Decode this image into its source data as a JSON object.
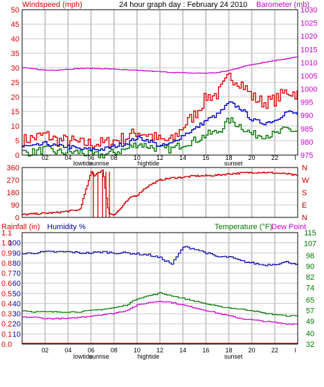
{
  "page_title": "24 hour graph day : February 24 2010",
  "colors": {
    "windspeed": "#dd0000",
    "gust": "#dd0000",
    "wind_avg": "#0000cc",
    "wind_low": "#007700",
    "barometer": "#cc00cc",
    "direction": "#cc0000",
    "humidity": "#0000aa",
    "temperature": "#007700",
    "dewpoint": "#cc00cc",
    "rainfall": "#dd0000",
    "grid": "#c8c8c8",
    "frame": "#000000"
  },
  "x_axis": {
    "hour_labels": [
      "02",
      "04",
      "06",
      "08",
      "10",
      "12",
      "14",
      "16",
      "18",
      "20",
      "22",
      "l"
    ],
    "events": [
      {
        "label": "lowtide",
        "hour": 5.3
      },
      {
        "label": "sunrise",
        "hour": 6.7
      },
      {
        "label": "hightide",
        "hour": 11.0
      },
      {
        "label": "sunset",
        "hour": 18.4
      }
    ]
  },
  "chart_data": [
    {
      "type": "line",
      "title": "24 hour graph day : February 24 2010",
      "left_label": "Windspeed (mph)",
      "right_label": "Barometer (mb)",
      "ylim_left": [
        0,
        50
      ],
      "left_ticks": [
        "0",
        "5",
        "10",
        "15",
        "20",
        "25",
        "30",
        "35",
        "40",
        "45",
        "50"
      ],
      "ylim_right": [
        975,
        1030
      ],
      "right_ticks": [
        "975",
        "980",
        "985",
        "990",
        "995",
        "1000",
        "1005",
        "1010",
        "1015",
        "1020",
        "1025",
        "1030"
      ],
      "x": [
        0,
        1,
        2,
        3,
        4,
        5,
        6,
        7,
        8,
        9,
        10,
        11,
        12,
        13,
        14,
        15,
        16,
        17,
        18,
        19,
        20,
        21,
        22,
        23,
        24
      ],
      "series": [
        {
          "key": "gust",
          "axis": "left",
          "values": [
            5,
            6,
            7,
            5,
            5,
            4,
            4,
            4,
            5,
            6,
            8,
            7,
            5,
            5,
            10,
            14,
            20,
            21,
            27,
            25,
            20,
            18,
            19,
            22,
            21
          ]
        },
        {
          "key": "wind_avg",
          "axis": "left",
          "values": [
            3,
            3,
            4,
            3,
            3,
            2,
            2,
            2,
            3,
            4,
            6,
            5,
            3,
            4,
            7,
            9,
            12,
            14,
            18,
            16,
            12,
            11,
            12,
            15,
            14
          ]
        },
        {
          "key": "wind_low",
          "axis": "left",
          "values": [
            1,
            1,
            2,
            1,
            1,
            1,
            0,
            0,
            1,
            2,
            4,
            3,
            2,
            2,
            4,
            5,
            7,
            8,
            12,
            10,
            7,
            7,
            7,
            9,
            8
          ]
        },
        {
          "key": "barometer",
          "axis": "right",
          "values": [
            1008,
            1007.6,
            1007.1,
            1007.2,
            1007.5,
            1007.8,
            1007.8,
            1007.7,
            1007.5,
            1007.2,
            1007,
            1006.8,
            1006.5,
            1006.3,
            1006.1,
            1006,
            1006,
            1006.2,
            1007,
            1008.3,
            1009.3,
            1010.1,
            1010.8,
            1011.5,
            1012.2
          ]
        }
      ]
    },
    {
      "type": "line",
      "left_label": "",
      "ylim": [
        0,
        360
      ],
      "y_ticks": [
        "0",
        "90",
        "180",
        "270",
        "360"
      ],
      "compass_labels": [
        "N",
        "W",
        "S",
        "E",
        "N"
      ],
      "x": [
        0,
        1,
        2,
        3,
        4,
        5,
        6,
        6.2,
        6.5,
        7,
        7.5,
        8,
        8.5,
        9,
        9.5,
        10,
        10.5,
        11,
        12,
        13,
        14,
        15,
        16,
        17,
        18,
        19,
        20,
        21,
        22,
        23,
        24
      ],
      "series": [
        {
          "key": "direction",
          "axis": "left",
          "values": [
            20,
            25,
            30,
            35,
            45,
            55,
            330,
            300,
            320,
            340,
            30,
            20,
            60,
            110,
            150,
            160,
            200,
            230,
            270,
            285,
            290,
            300,
            300,
            305,
            315,
            320,
            325,
            325,
            320,
            315,
            300
          ]
        }
      ]
    },
    {
      "type": "line",
      "left_label": "Rainfall (in)",
      "left_label_2": "Humidity %",
      "right_label": "Temperature (°F)",
      "right_label_2": "Dew Point",
      "rain_ticks": [
        "0.0",
        "0.1",
        "0.2",
        "0.3",
        "0.4",
        "0.5",
        "0.6",
        "0.7",
        "0.8",
        "0.9",
        "1.0",
        "1.1"
      ],
      "humidity_ticks": [
        "10",
        "20",
        "30",
        "40",
        "50",
        "60",
        "70",
        "80",
        "90",
        "100"
      ],
      "ylim_humidity": [
        0,
        110
      ],
      "ylim_right": [
        32,
        115
      ],
      "right_ticks": [
        "32",
        "40",
        "49",
        "57",
        "65",
        "74",
        "82",
        "90",
        "98",
        "107",
        "115"
      ],
      "x": [
        0,
        1,
        2,
        3,
        4,
        5,
        6,
        7,
        8,
        9,
        10,
        11,
        12,
        13,
        14,
        15,
        16,
        17,
        18,
        19,
        20,
        21,
        22,
        23,
        24
      ],
      "series": [
        {
          "key": "humidity",
          "axis": "left",
          "values": [
            89,
            90,
            91,
            91,
            91,
            90,
            90,
            91,
            90,
            90,
            89,
            88,
            85,
            79,
            96,
            94,
            90,
            86,
            86,
            82,
            80,
            78,
            79,
            81,
            79
          ]
        },
        {
          "key": "temperature",
          "axis": "right",
          "values": [
            57,
            56,
            56,
            56,
            56,
            56,
            57,
            58,
            59,
            61,
            66,
            68,
            70,
            68,
            66,
            64,
            62,
            60,
            59,
            58,
            57,
            55,
            54,
            53,
            53
          ]
        },
        {
          "key": "dewpoint",
          "axis": "right",
          "values": [
            52,
            52,
            51,
            51,
            51,
            52,
            53,
            54,
            55,
            57,
            61,
            63,
            64,
            63,
            61,
            59,
            57,
            55,
            53,
            51,
            50,
            49,
            48,
            47,
            47
          ]
        },
        {
          "key": "rainfall",
          "axis": "rain",
          "values": [
            0,
            0,
            0,
            0,
            0,
            0,
            0,
            0,
            0,
            0,
            0,
            0,
            0,
            0,
            0,
            0,
            0,
            0,
            0,
            0,
            0,
            0,
            0,
            0,
            0
          ]
        }
      ]
    }
  ]
}
